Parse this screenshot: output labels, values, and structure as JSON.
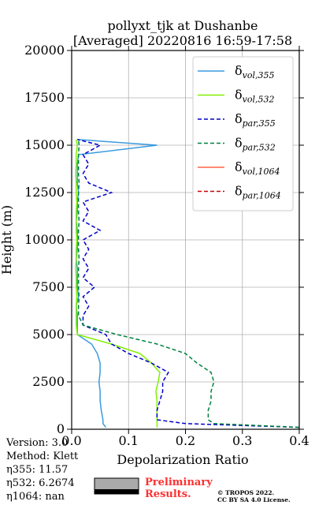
{
  "chart_data": {
    "type": "line",
    "title": [
      "pollyxt_tjk at Dushanbe",
      "[Averaged] 20220816 16:59-17:58"
    ],
    "x_label": "Depolarization Ratio",
    "y_label": "Height (m)",
    "xlim": [
      0,
      0.4
    ],
    "xticks": [
      {
        "value": 0,
        "label": "0.0"
      },
      0.1,
      0.2,
      0.3,
      0.4
    ],
    "ylim": [
      0,
      20000
    ],
    "yticks": [
      0,
      2500,
      5000,
      7500,
      10000,
      12500,
      15000,
      17500,
      20000
    ],
    "grid": true,
    "legend": "upper right",
    "y": [
      100,
      300,
      500,
      1000,
      1500,
      2000,
      2500,
      3000,
      3500,
      4000,
      4500,
      5000,
      5500,
      6000,
      6500,
      7000,
      7500,
      8000,
      8500,
      9000,
      9500,
      10000,
      10500,
      11000,
      11500,
      12000,
      12500,
      13000,
      13500,
      14000,
      14500,
      15000,
      15300
    ],
    "series": [
      {
        "name": "δvol,355",
        "color": "#3a9be0",
        "linestyle": "solid",
        "x": [
          0.06,
          0.055,
          0.055,
          0.052,
          0.05,
          0.05,
          0.048,
          0.05,
          0.05,
          0.045,
          0.035,
          0.01,
          0.01,
          0.01,
          0.008,
          0.012,
          0.01,
          0.01,
          0.01,
          0.008,
          0.01,
          0.01,
          0.01,
          0.008,
          0.01,
          0.01,
          0.012,
          0.01,
          0.01,
          0.01,
          0.012,
          0.15,
          0.01
        ]
      },
      {
        "name": "δvol,532",
        "color": "#80f000",
        "linestyle": "solid",
        "x": [
          0.15,
          0.15,
          0.15,
          0.15,
          0.15,
          0.148,
          0.152,
          0.155,
          0.14,
          0.12,
          0.07,
          0.01,
          0.008,
          0.008,
          0.008,
          0.009,
          0.008,
          0.008,
          0.007,
          0.008,
          0.008,
          0.009,
          0.008,
          0.008,
          0.008,
          0.009,
          0.008,
          0.008,
          0.007,
          0.008,
          0.008,
          0.01,
          0.008
        ]
      },
      {
        "name": "δpar,355",
        "color": "#0000cc",
        "linestyle": "dashed",
        "x": [
          0.4,
          0.2,
          0.15,
          0.15,
          0.155,
          0.16,
          0.16,
          0.17,
          0.14,
          0.1,
          0.07,
          0.06,
          0.02,
          0.02,
          0.03,
          0.02,
          0.04,
          0.02,
          0.03,
          0.02,
          0.03,
          0.02,
          0.05,
          0.02,
          0.03,
          0.02,
          0.07,
          0.03,
          0.02,
          0.03,
          0.02,
          0.05,
          0.01
        ]
      },
      {
        "name": "δpar,532",
        "color": "#00803f",
        "linestyle": "dashed",
        "x": [
          0.4,
          0.25,
          0.24,
          0.24,
          0.245,
          0.245,
          0.25,
          0.245,
          0.22,
          0.2,
          0.15,
          0.08,
          0.02,
          0.012,
          0.012,
          0.013,
          0.012,
          0.012,
          0.012,
          0.013,
          0.012,
          0.012,
          0.012,
          0.013,
          0.012,
          0.012,
          0.012,
          0.013,
          0.012,
          0.012,
          0.012,
          0.013,
          0.012
        ]
      },
      {
        "name": "δvol,1064",
        "color": "#ff6347",
        "linestyle": "solid",
        "x": [
          null,
          null,
          null,
          null,
          null,
          null,
          null,
          null,
          null,
          null,
          null,
          null,
          null,
          null,
          null,
          null,
          null,
          null,
          null,
          null,
          null,
          null,
          null,
          null,
          null,
          null,
          null,
          null,
          null,
          null,
          null,
          null,
          null
        ]
      },
      {
        "name": "δpar,1064",
        "color": "#cc0000",
        "linestyle": "dashed",
        "x": [
          null,
          null,
          null,
          null,
          null,
          null,
          null,
          null,
          null,
          null,
          null,
          null,
          null,
          null,
          null,
          null,
          null,
          null,
          null,
          null,
          null,
          null,
          null,
          null,
          null,
          null,
          null,
          null,
          null,
          null,
          null,
          null,
          null
        ]
      }
    ],
    "info": [
      "Version: 3.0",
      "Method: Klett",
      "η355:  11.57",
      "η532: 6.2674",
      "η1064:    nan"
    ],
    "stamp": [
      "Preliminary",
      "Results."
    ],
    "copyright": [
      "© TROPOS 2022.",
      "CC BY SA 4.0 License."
    ]
  }
}
